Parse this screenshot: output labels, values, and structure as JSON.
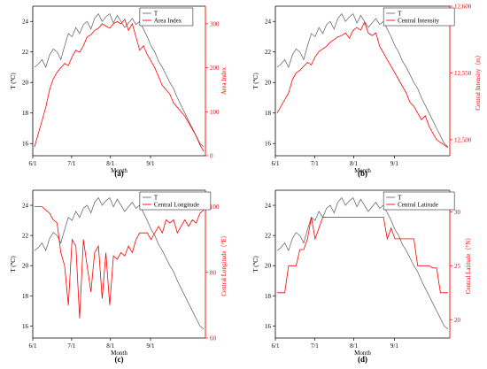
{
  "colors": {
    "t_line": "#6e6e6e",
    "red": "#ff0000",
    "axis": "#000000"
  },
  "chart_data": [
    {
      "type": "line",
      "panel_label": "(a)",
      "xlabel": "Month",
      "x_ticks": [
        "6/1",
        "7/1",
        "8/1",
        "9/1"
      ],
      "left_axis": {
        "label": "T (℃)",
        "ticks": [
          16,
          18,
          20,
          22,
          24
        ],
        "ylim": [
          15.2,
          25
        ]
      },
      "right_axis": {
        "label": "Area Index",
        "ticks": [
          0,
          100,
          200,
          300
        ],
        "ylim": [
          0,
          340
        ]
      },
      "legend": [
        "T",
        "Area Index"
      ],
      "series": [
        {
          "name": "T",
          "axis": "left",
          "values": [
            21.0,
            21.2,
            21.5,
            21.0,
            21.8,
            22.2,
            22.0,
            21.5,
            22.4,
            23.2,
            23.0,
            23.6,
            23.2,
            23.8,
            24.0,
            23.5,
            24.2,
            24.5,
            24.0,
            24.3,
            24.5,
            23.9,
            24.4,
            24.0,
            23.6,
            23.9,
            24.2,
            23.8,
            24.0,
            23.5,
            23.0,
            22.4,
            22.0,
            21.4,
            21.0,
            20.5,
            20.0,
            19.6,
            19.0,
            18.5,
            18.0,
            17.5,
            17.0,
            16.5,
            16.0,
            15.8
          ]
        },
        {
          "name": "Area Index",
          "axis": "right",
          "values": [
            20,
            50,
            80,
            110,
            150,
            175,
            190,
            200,
            210,
            205,
            225,
            240,
            235,
            250,
            270,
            275,
            285,
            290,
            300,
            295,
            290,
            300,
            305,
            300,
            310,
            285,
            300,
            270,
            240,
            250,
            230,
            215,
            200,
            180,
            160,
            150,
            140,
            120,
            110,
            100,
            90,
            75,
            60,
            45,
            25,
            10
          ]
        }
      ]
    },
    {
      "type": "line",
      "panel_label": "(b)",
      "xlabel": "Month",
      "x_ticks": [
        "6/1",
        "7/1",
        "8/1",
        "9/1"
      ],
      "left_axis": {
        "label": "T (℃)",
        "ticks": [
          16,
          18,
          20,
          22,
          24
        ],
        "ylim": [
          15.2,
          25
        ]
      },
      "right_axis": {
        "label": "Central Intensity（m）",
        "ticks": [
          "12,500",
          "12,550",
          "12,600"
        ],
        "tick_values": [
          12500,
          12550,
          12600
        ],
        "ylim": [
          12488,
          12600
        ]
      },
      "legend": [
        "T",
        "Central Intensity"
      ],
      "series": [
        {
          "name": "T",
          "axis": "left",
          "values": [
            21.0,
            21.2,
            21.5,
            21.0,
            21.8,
            22.2,
            22.0,
            21.5,
            22.4,
            23.2,
            23.0,
            23.6,
            23.2,
            23.8,
            24.0,
            23.5,
            24.2,
            24.5,
            24.0,
            24.3,
            24.5,
            23.9,
            24.4,
            24.0,
            23.6,
            23.9,
            24.2,
            23.8,
            24.0,
            23.5,
            23.0,
            22.4,
            22.0,
            21.4,
            21.0,
            20.5,
            20.0,
            19.6,
            19.0,
            18.5,
            18.0,
            17.5,
            17.0,
            16.5,
            16.0,
            15.8
          ]
        },
        {
          "name": "Central Intensity",
          "axis": "right",
          "values": [
            12520,
            12525,
            12530,
            12535,
            12545,
            12550,
            12552,
            12555,
            12558,
            12556,
            12562,
            12566,
            12568,
            12570,
            12573,
            12575,
            12577,
            12578,
            12580,
            12576,
            12582,
            12584,
            12582,
            12588,
            12580,
            12578,
            12580,
            12570,
            12565,
            12560,
            12555,
            12550,
            12545,
            12540,
            12535,
            12528,
            12525,
            12520,
            12515,
            12518,
            12510,
            12505,
            12500,
            12498,
            12496,
            12494
          ]
        }
      ]
    },
    {
      "type": "line",
      "panel_label": "(c)",
      "xlabel": "Month",
      "x_ticks": [
        "6/1",
        "7/1",
        "8/1",
        "9/1"
      ],
      "left_axis": {
        "label": "T (℃)",
        "ticks": [
          16,
          18,
          20,
          22,
          24
        ],
        "ylim": [
          15.2,
          25
        ]
      },
      "right_axis": {
        "label": "Central Longitude（°E）",
        "ticks": [
          60,
          80,
          100
        ],
        "ylim": [
          60,
          105
        ]
      },
      "legend": [
        "T",
        "Central Longitude"
      ],
      "series": [
        {
          "name": "T",
          "axis": "left",
          "values": [
            21.0,
            21.2,
            21.5,
            21.0,
            21.8,
            22.2,
            22.0,
            21.5,
            22.4,
            23.2,
            23.0,
            23.6,
            23.2,
            23.8,
            24.0,
            23.5,
            24.2,
            24.5,
            24.0,
            24.3,
            24.5,
            23.9,
            24.4,
            24.0,
            23.6,
            23.9,
            24.2,
            23.8,
            24.0,
            23.5,
            23.0,
            22.4,
            22.0,
            21.4,
            21.0,
            20.5,
            20.0,
            19.6,
            19.0,
            18.5,
            18.0,
            17.5,
            17.0,
            16.5,
            16.0,
            15.8
          ]
        },
        {
          "name": "Central Longitude",
          "axis": "right",
          "values": [
            100,
            100,
            100,
            99,
            98,
            96,
            95,
            86,
            82,
            70,
            90,
            88,
            66,
            90,
            82,
            74,
            86,
            88,
            72,
            86,
            70,
            85,
            84,
            86,
            85,
            88,
            86,
            90,
            92,
            92,
            92,
            90,
            92,
            94,
            92,
            96,
            95,
            96,
            92,
            94,
            96,
            94,
            96,
            95,
            98,
            99
          ]
        }
      ]
    },
    {
      "type": "line",
      "panel_label": "(d)",
      "xlabel": "Month",
      "x_ticks": [
        "6/1",
        "7/1",
        "8/1",
        "9/1"
      ],
      "left_axis": {
        "label": "T (℃)",
        "ticks": [
          16,
          18,
          20,
          22,
          24
        ],
        "ylim": [
          15.2,
          25
        ]
      },
      "right_axis": {
        "label": "Central Latitude（°N）",
        "ticks": [
          20,
          25,
          30
        ],
        "ylim": [
          18.3,
          32
        ]
      },
      "legend": [
        "T",
        "Central Latitude"
      ],
      "series": [
        {
          "name": "T",
          "axis": "left",
          "values": [
            21.0,
            21.2,
            21.5,
            21.0,
            21.8,
            22.2,
            22.0,
            21.5,
            22.4,
            23.2,
            23.0,
            23.6,
            23.2,
            23.8,
            24.0,
            23.5,
            24.2,
            24.5,
            24.0,
            24.3,
            24.5,
            23.9,
            24.4,
            24.0,
            23.6,
            23.9,
            24.2,
            23.8,
            24.0,
            23.5,
            23.0,
            22.4,
            22.0,
            21.4,
            21.0,
            20.5,
            20.0,
            19.6,
            19.0,
            18.5,
            18.0,
            17.5,
            17.0,
            16.5,
            16.0,
            15.8
          ]
        },
        {
          "name": "Central Latitude",
          "axis": "right",
          "values": [
            22.5,
            22.5,
            22.5,
            25,
            25,
            25,
            26.5,
            26.5,
            27.5,
            29.5,
            27.5,
            28.5,
            29.5,
            29.5,
            29.5,
            29.5,
            29.5,
            29.5,
            29.5,
            29.5,
            29.5,
            29.5,
            29.5,
            29.5,
            29.5,
            29.5,
            29.5,
            29.5,
            29.5,
            27.5,
            28.5,
            27.5,
            27.5,
            27.5,
            27.5,
            27.5,
            27.5,
            25,
            25,
            25,
            25,
            24.8,
            24.8,
            22.5,
            22.5,
            22.5
          ]
        }
      ]
    }
  ]
}
